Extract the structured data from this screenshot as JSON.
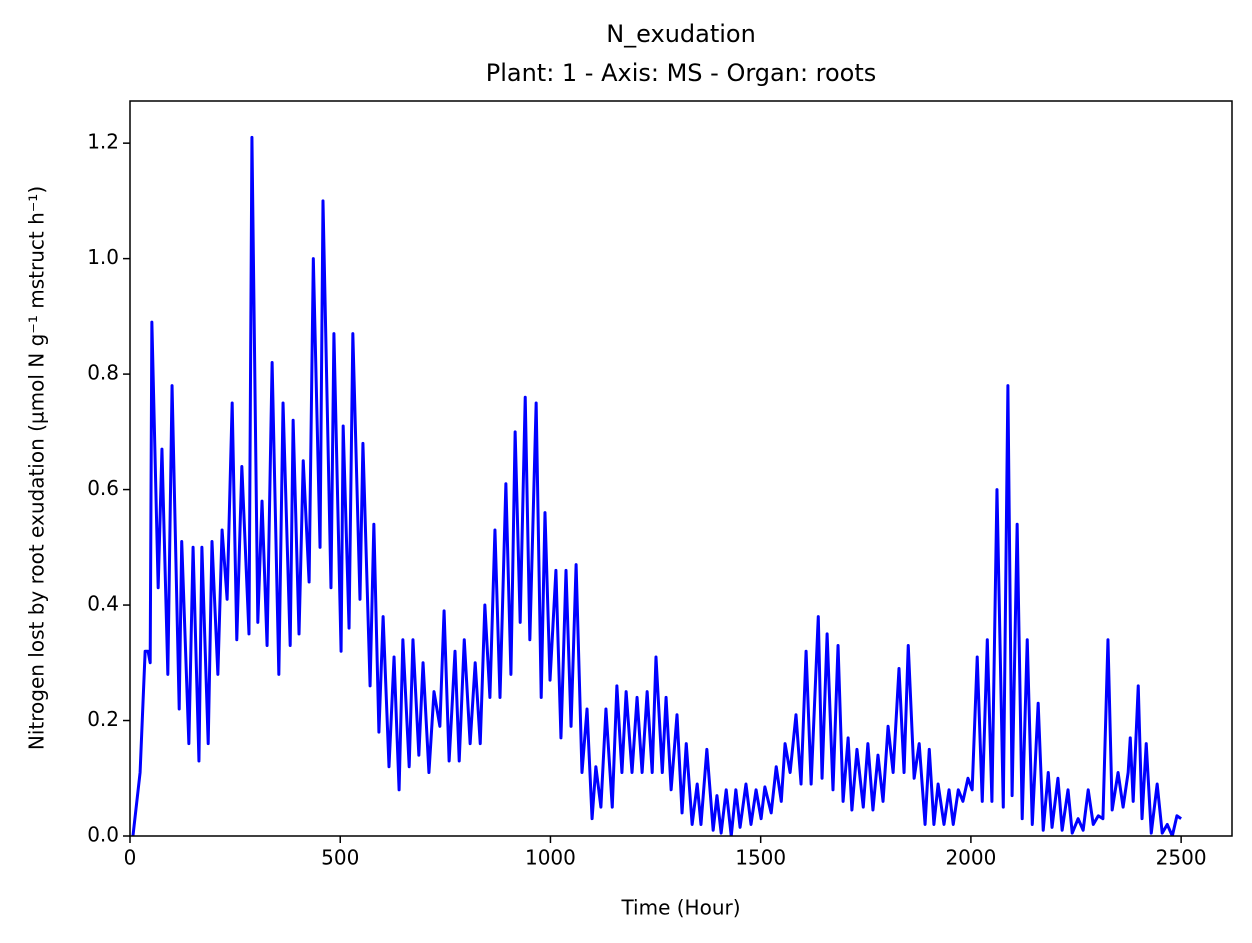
{
  "chart_data": {
    "type": "line",
    "title": "N_exudation",
    "subtitle": "Plant: 1 - Axis: MS - Organ: roots",
    "x_label": "Time (Hour)",
    "y_label": "Nitrogen lost by root exudation (µmol N g⁻¹ mstruct h⁻¹)",
    "xlim": [
      0,
      2621
    ],
    "ylim": [
      0,
      1.273
    ],
    "xticks": [
      0,
      500,
      1000,
      1500,
      2000,
      2500
    ],
    "yticks": [
      {
        "value": 0,
        "label": "0.0"
      },
      0.2,
      0.4,
      0.6,
      0.8,
      {
        "value": 1,
        "label": "1.0"
      },
      1.2
    ],
    "grid": false,
    "series": [
      {
        "color": "#0000ff",
        "x": [
          7,
          24,
          36,
          43,
          48,
          52,
          67,
          76,
          90,
          100,
          117,
          123,
          140,
          150,
          164,
          171,
          186,
          195,
          209,
          219,
          231,
          243,
          254,
          266,
          283,
          290,
          304,
          314,
          326,
          338,
          354,
          364,
          381,
          388,
          402,
          412,
          426,
          436,
          452,
          459,
          478,
          485,
          502,
          507,
          521,
          530,
          547,
          554,
          571,
          580,
          592,
          602,
          616,
          628,
          640,
          649,
          664,
          673,
          687,
          697,
          711,
          723,
          737,
          747,
          759,
          773,
          783,
          795,
          809,
          821,
          833,
          844,
          856,
          868,
          880,
          894,
          906,
          916,
          928,
          940,
          951,
          966,
          978,
          987,
          999,
          1013,
          1025,
          1037,
          1049,
          1061,
          1075,
          1087,
          1099,
          1108,
          1120,
          1132,
          1147,
          1158,
          1170,
          1180,
          1194,
          1206,
          1218,
          1230,
          1242,
          1251,
          1266,
          1275,
          1287,
          1301,
          1313,
          1323,
          1337,
          1349,
          1358,
          1372,
          1387,
          1396,
          1406,
          1418,
          1430,
          1441,
          1451,
          1465,
          1477,
          1489,
          1501,
          1510,
          1525,
          1537,
          1549,
          1558,
          1570,
          1584,
          1596,
          1608,
          1620,
          1637,
          1646,
          1658,
          1672,
          1684,
          1696,
          1708,
          1717,
          1729,
          1744,
          1755,
          1767,
          1779,
          1791,
          1803,
          1815,
          1829,
          1841,
          1851,
          1865,
          1877,
          1891,
          1901,
          1912,
          1922,
          1936,
          1948,
          1958,
          1970,
          1981,
          1993,
          2003,
          2015,
          2027,
          2039,
          2050,
          2062,
          2077,
          2088,
          2098,
          2110,
          2122,
          2134,
          2146,
          2160,
          2172,
          2184,
          2193,
          2207,
          2217,
          2231,
          2241,
          2255,
          2267,
          2279,
          2291,
          2303,
          2314,
          2326,
          2336,
          2350,
          2362,
          2374,
          2379,
          2386,
          2398,
          2407,
          2417,
          2429,
          2443,
          2455,
          2467,
          2479,
          2490,
          2500
        ],
        "values": [
          0,
          0.11,
          0.32,
          0.32,
          0.3,
          0.89,
          0.43,
          0.67,
          0.28,
          0.78,
          0.22,
          0.51,
          0.16,
          0.5,
          0.13,
          0.5,
          0.16,
          0.51,
          0.28,
          0.53,
          0.41,
          0.75,
          0.34,
          0.64,
          0.35,
          1.21,
          0.37,
          0.58,
          0.33,
          0.82,
          0.28,
          0.75,
          0.33,
          0.72,
          0.35,
          0.65,
          0.44,
          1.0,
          0.5,
          1.1,
          0.43,
          0.87,
          0.32,
          0.71,
          0.36,
          0.87,
          0.41,
          0.68,
          0.26,
          0.54,
          0.18,
          0.38,
          0.12,
          0.31,
          0.08,
          0.34,
          0.12,
          0.34,
          0.14,
          0.3,
          0.11,
          0.25,
          0.19,
          0.39,
          0.13,
          0.32,
          0.13,
          0.34,
          0.16,
          0.3,
          0.16,
          0.4,
          0.24,
          0.53,
          0.24,
          0.61,
          0.28,
          0.7,
          0.37,
          0.76,
          0.34,
          0.75,
          0.24,
          0.56,
          0.27,
          0.46,
          0.17,
          0.46,
          0.19,
          0.47,
          0.11,
          0.22,
          0.03,
          0.12,
          0.05,
          0.22,
          0.05,
          0.26,
          0.11,
          0.25,
          0.11,
          0.24,
          0.11,
          0.25,
          0.11,
          0.31,
          0.11,
          0.24,
          0.08,
          0.21,
          0.04,
          0.16,
          0.02,
          0.09,
          0.02,
          0.15,
          0.01,
          0.07,
          0.005,
          0.08,
          0,
          0.08,
          0.015,
          0.09,
          0.02,
          0.08,
          0.03,
          0.085,
          0.04,
          0.12,
          0.06,
          0.16,
          0.11,
          0.21,
          0.09,
          0.32,
          0.09,
          0.38,
          0.1,
          0.35,
          0.08,
          0.33,
          0.06,
          0.17,
          0.045,
          0.15,
          0.05,
          0.16,
          0.045,
          0.14,
          0.06,
          0.19,
          0.11,
          0.29,
          0.11,
          0.33,
          0.1,
          0.16,
          0.02,
          0.15,
          0.02,
          0.09,
          0.02,
          0.08,
          0.02,
          0.08,
          0.06,
          0.1,
          0.08,
          0.31,
          0.06,
          0.34,
          0.06,
          0.6,
          0.05,
          0.78,
          0.07,
          0.54,
          0.03,
          0.34,
          0.02,
          0.23,
          0.01,
          0.11,
          0.015,
          0.1,
          0.01,
          0.08,
          0.005,
          0.03,
          0.01,
          0.08,
          0.02,
          0.035,
          0.03,
          0.34,
          0.045,
          0.11,
          0.05,
          0.11,
          0.17,
          0.06,
          0.26,
          0.03,
          0.16,
          0.005,
          0.09,
          0.005,
          0.02,
          0,
          0.035,
          0.03
        ]
      }
    ]
  }
}
